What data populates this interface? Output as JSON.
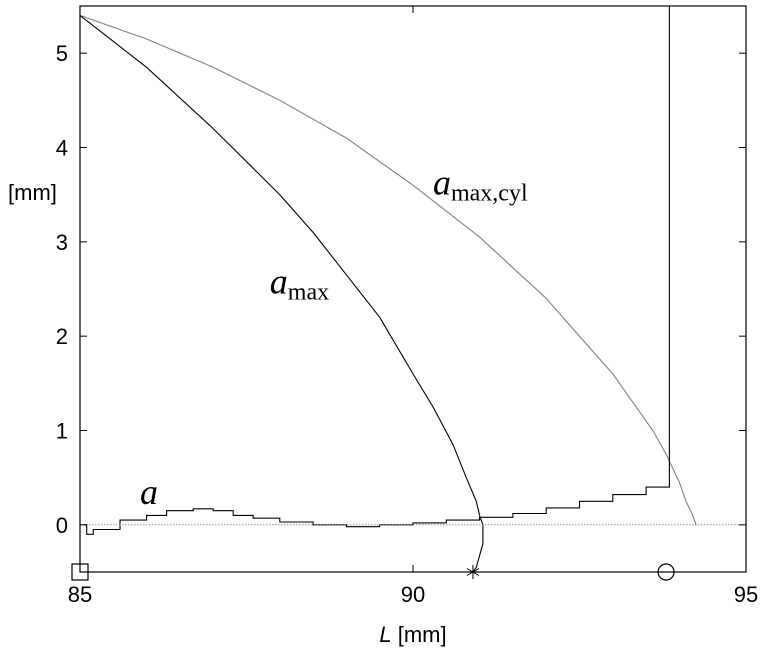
{
  "chart_data": {
    "type": "line",
    "xlabel": {
      "var": "L",
      "unit": " [mm]"
    },
    "ylabel": "[mm]",
    "xlim": [
      85,
      95
    ],
    "ylim": [
      -0.5,
      5.5
    ],
    "xticks": [
      "85",
      "90",
      "95"
    ],
    "yticks": [
      "0",
      "1",
      "2",
      "3",
      "4",
      "5"
    ],
    "xtick_values": [
      85,
      90,
      95
    ],
    "ytick_values": [
      0,
      1,
      2,
      3,
      4,
      5
    ],
    "grid": false,
    "series": [
      {
        "name": "a_max,cyl",
        "color": "#808080",
        "x": [
          85.0,
          86.0,
          87.0,
          88.0,
          89.0,
          90.0,
          91.0,
          92.0,
          92.5,
          93.0,
          93.3,
          93.6,
          93.8,
          94.0,
          94.1,
          94.2,
          94.25
        ],
        "y": [
          5.4,
          5.15,
          4.85,
          4.5,
          4.1,
          3.6,
          3.05,
          2.4,
          2.0,
          1.6,
          1.3,
          1.0,
          0.75,
          0.45,
          0.25,
          0.1,
          0.0
        ]
      },
      {
        "name": "a_max",
        "color": "#000000",
        "x": [
          85.0,
          86.0,
          87.0,
          88.0,
          88.5,
          89.0,
          89.5,
          90.0,
          90.3,
          90.6,
          90.8,
          90.95,
          91.0,
          91.05,
          91.05,
          90.95,
          90.9
        ],
        "y": [
          5.4,
          4.85,
          4.2,
          3.5,
          3.1,
          2.65,
          2.2,
          1.6,
          1.25,
          0.85,
          0.5,
          0.25,
          0.1,
          0.0,
          -0.2,
          -0.45,
          -0.5
        ]
      },
      {
        "name": "a",
        "color": "#000000",
        "x": [
          85.05,
          85.1,
          85.2,
          85.4,
          85.6,
          86.0,
          86.3,
          86.7,
          87.0,
          87.3,
          87.6,
          88.0,
          88.5,
          89.0,
          89.5,
          90.0,
          90.5,
          91.0,
          91.5,
          92.0,
          92.5,
          93.0,
          93.5,
          93.85,
          93.85
        ],
        "y": [
          0.0,
          -0.1,
          -0.05,
          -0.05,
          0.05,
          0.1,
          0.15,
          0.17,
          0.15,
          0.1,
          0.07,
          0.03,
          0.0,
          -0.02,
          0.0,
          0.02,
          0.05,
          0.08,
          0.12,
          0.18,
          0.25,
          0.32,
          0.4,
          0.42,
          5.5
        ]
      },
      {
        "name": "zero-reference",
        "color": "#808080",
        "x": [
          85,
          95
        ],
        "y": [
          0,
          0
        ]
      }
    ],
    "annotations": [
      {
        "base": "a",
        "sub": "max,cyl",
        "x": 90.3,
        "y": 3.5
      },
      {
        "base": "a",
        "sub": "max",
        "x": 87.85,
        "y": 2.45
      },
      {
        "base": "a",
        "sub": "",
        "x": 85.9,
        "y": 0.22
      }
    ],
    "markers": [
      {
        "shape": "square",
        "x": 85.0,
        "y": -0.5
      },
      {
        "shape": "asterisk",
        "x": 90.9,
        "y": -0.5
      },
      {
        "shape": "circle",
        "x": 93.8,
        "y": -0.5
      }
    ]
  }
}
